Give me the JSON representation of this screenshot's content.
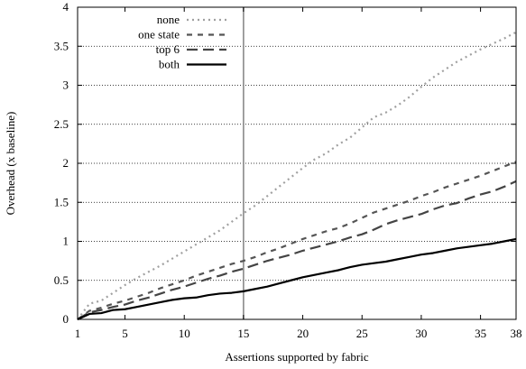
{
  "chart_data": {
    "type": "line",
    "title": "",
    "xlabel": "Assertions supported by fabric",
    "ylabel": "Overhead (x baseline)",
    "xlim": [
      1,
      38
    ],
    "ylim": [
      0,
      4
    ],
    "x_ticks": [
      1,
      5,
      10,
      15,
      20,
      25,
      30,
      35,
      38
    ],
    "y_ticks": [
      "0",
      "0.5",
      "1",
      "1.5",
      "2",
      "2.5",
      "3",
      "3.5",
      "4"
    ],
    "grid": "horizontal dotted",
    "reference_line_x": 15,
    "legend_position": "top-left",
    "x": [
      1,
      2,
      3,
      4,
      5,
      6,
      7,
      8,
      9,
      10,
      11,
      12,
      13,
      14,
      15,
      16,
      17,
      18,
      19,
      20,
      21,
      22,
      23,
      24,
      25,
      26,
      27,
      28,
      29,
      30,
      31,
      32,
      33,
      34,
      35,
      36,
      37,
      38
    ],
    "series": [
      {
        "name": "none",
        "style": "dotted",
        "color": "#a0a0a0",
        "values": [
          0.0,
          0.2,
          0.24,
          0.34,
          0.44,
          0.53,
          0.61,
          0.69,
          0.78,
          0.87,
          0.96,
          1.05,
          1.14,
          1.25,
          1.36,
          1.46,
          1.58,
          1.7,
          1.82,
          1.94,
          2.05,
          2.13,
          2.24,
          2.33,
          2.46,
          2.59,
          2.65,
          2.74,
          2.85,
          2.98,
          3.1,
          3.2,
          3.3,
          3.38,
          3.46,
          3.53,
          3.6,
          3.68
        ]
      },
      {
        "name": "one state",
        "style": "short-dash",
        "color": "#555555",
        "values": [
          0.0,
          0.11,
          0.15,
          0.2,
          0.24,
          0.29,
          0.34,
          0.4,
          0.45,
          0.5,
          0.56,
          0.61,
          0.66,
          0.71,
          0.75,
          0.8,
          0.86,
          0.91,
          0.97,
          1.03,
          1.08,
          1.13,
          1.17,
          1.23,
          1.3,
          1.37,
          1.42,
          1.47,
          1.52,
          1.58,
          1.63,
          1.69,
          1.74,
          1.79,
          1.84,
          1.9,
          1.96,
          2.02
        ]
      },
      {
        "name": "top 6",
        "style": "long-dash",
        "color": "#444444",
        "values": [
          0.0,
          0.09,
          0.12,
          0.16,
          0.19,
          0.24,
          0.28,
          0.33,
          0.38,
          0.42,
          0.47,
          0.52,
          0.56,
          0.61,
          0.65,
          0.7,
          0.75,
          0.79,
          0.83,
          0.88,
          0.92,
          0.96,
          1.0,
          1.05,
          1.09,
          1.15,
          1.22,
          1.27,
          1.31,
          1.35,
          1.41,
          1.46,
          1.49,
          1.55,
          1.6,
          1.64,
          1.7,
          1.77
        ]
      },
      {
        "name": "both",
        "style": "solid",
        "color": "#000000",
        "values": [
          0.0,
          0.07,
          0.08,
          0.12,
          0.13,
          0.16,
          0.19,
          0.22,
          0.25,
          0.27,
          0.28,
          0.31,
          0.33,
          0.34,
          0.36,
          0.39,
          0.42,
          0.46,
          0.5,
          0.54,
          0.57,
          0.6,
          0.63,
          0.67,
          0.7,
          0.72,
          0.74,
          0.77,
          0.8,
          0.83,
          0.85,
          0.88,
          0.91,
          0.93,
          0.95,
          0.97,
          1.0,
          1.03
        ]
      }
    ]
  }
}
